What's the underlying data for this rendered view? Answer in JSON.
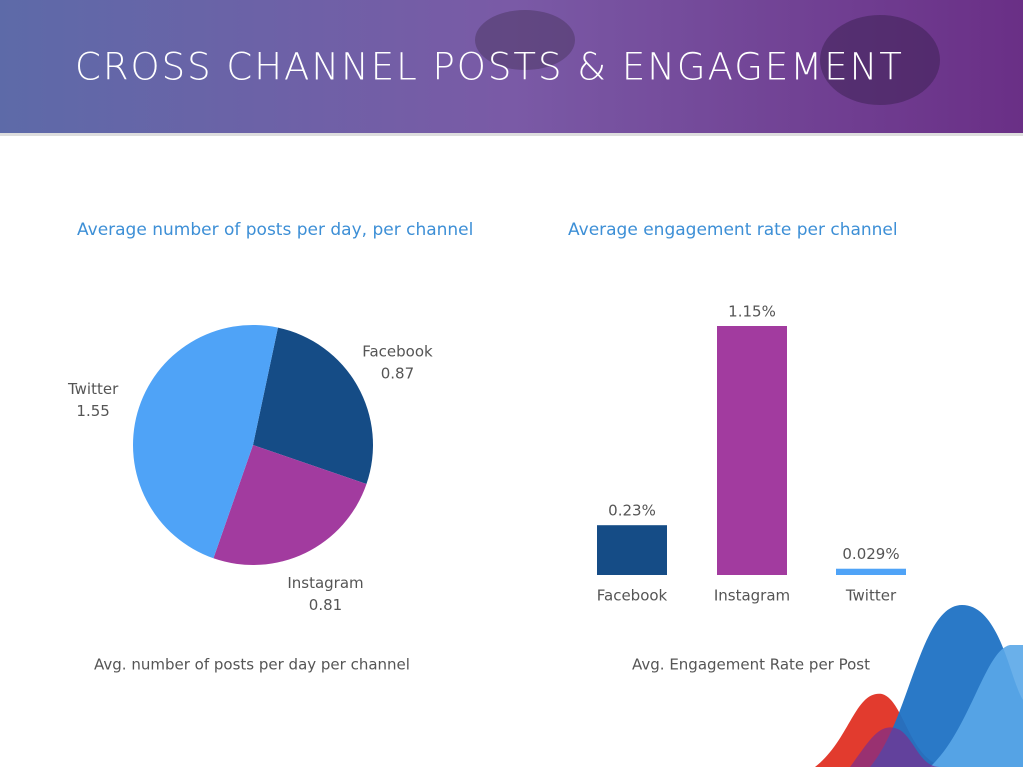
{
  "header": {
    "title": "CROSS CHANNEL POSTS & ENGAGEMENT"
  },
  "chart_data": [
    {
      "type": "pie",
      "title": "Average number of posts per day, per channel",
      "categories": [
        "Facebook",
        "Instagram",
        "Twitter"
      ],
      "values": [
        0.87,
        0.81,
        1.55
      ],
      "colors": [
        "#154c86",
        "#a23b9f",
        "#4fa3f7"
      ],
      "caption": "Avg. number of posts per day per channel"
    },
    {
      "type": "bar",
      "title": "Average engagement rate per channel",
      "categories": [
        "Facebook",
        "Instagram",
        "Twitter"
      ],
      "values": [
        0.23,
        1.15,
        0.029
      ],
      "value_labels": [
        "0.23%",
        "1.15%",
        "0.029%"
      ],
      "colors": [
        "#154c86",
        "#a23b9f",
        "#4fa3f7"
      ],
      "caption": "Avg. Engagement Rate per Post"
    }
  ]
}
